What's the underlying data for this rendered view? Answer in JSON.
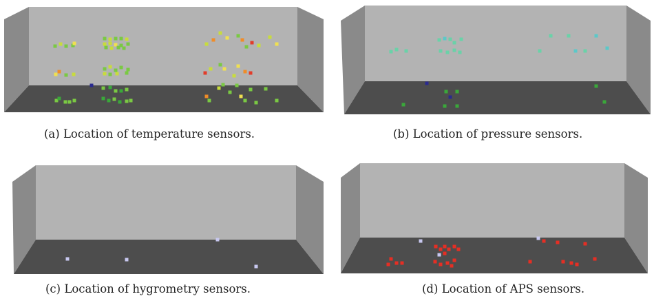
{
  "figure": {
    "colors": {
      "back_wall": "#b3b3b3",
      "side_wall": "#8a8a8a",
      "floor": "#4d4d4d",
      "outline": "#9a9a9a"
    },
    "panels": [
      {
        "id": "a",
        "caption": "(a)  Location of temperature sensors.",
        "sensor_type": "temperature",
        "sensor_colors": [
          "#7ac943",
          "#c8dc3c",
          "#f0e050",
          "#f08c28",
          "#e23c2a",
          "#3aa83a",
          "#2a2a90"
        ]
      },
      {
        "id": "b",
        "caption": "(b)  Location of pressure sensors.",
        "sensor_type": "pressure",
        "sensor_colors": [
          "#6ad2a8",
          "#5cc8c8",
          "#3aa83a",
          "#2a2a90"
        ]
      },
      {
        "id": "c",
        "caption": "(c)  Location of hygrometry sensors.",
        "sensor_type": "hygrometry",
        "sensor_colors": [
          "#c8c8f0"
        ]
      },
      {
        "id": "d",
        "caption": "(d)  Location of APS sensors.",
        "sensor_type": "APS",
        "sensor_colors": [
          "#e62e24",
          "#c8c8f0"
        ]
      }
    ]
  }
}
